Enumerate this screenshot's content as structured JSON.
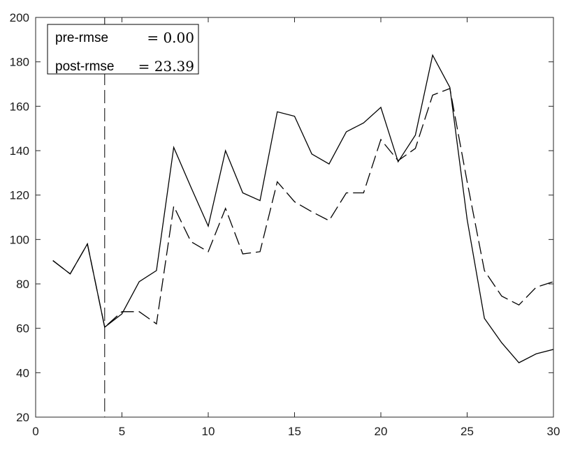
{
  "chart_data": {
    "type": "line",
    "title": "",
    "xlabel": "",
    "ylabel": "",
    "xlim": [
      0,
      30
    ],
    "ylim": [
      20,
      200
    ],
    "xticks": [
      0,
      5,
      10,
      15,
      20,
      25,
      30
    ],
    "yticks": [
      20,
      40,
      60,
      80,
      100,
      120,
      140,
      160,
      180,
      200
    ],
    "grid": false,
    "legend_position": "top-left",
    "x": [
      1,
      2,
      3,
      4,
      5,
      6,
      7,
      8,
      9,
      10,
      11,
      12,
      13,
      14,
      15,
      16,
      17,
      18,
      19,
      20,
      21,
      22,
      23,
      24,
      25,
      26,
      27,
      28,
      29,
      30
    ],
    "series": [
      {
        "style": "solid",
        "color": "#000000",
        "values": [
          90.5,
          84.5,
          98,
          60.5,
          66.5,
          81,
          86,
          141.5,
          123.5,
          106,
          140,
          121,
          117.5,
          157.5,
          155.5,
          138.5,
          134,
          148.5,
          152.5,
          159.5,
          135,
          147,
          183,
          168.5,
          109,
          64.5,
          53.5,
          44.5,
          48.5,
          50.5
        ]
      },
      {
        "style": "dashed",
        "color": "#000000",
        "values": [
          90.5,
          84.5,
          98,
          60.5,
          67.5,
          67.5,
          62,
          115,
          99,
          94.5,
          114,
          93.5,
          94.5,
          126,
          117,
          112.5,
          108.5,
          121,
          121,
          145,
          135.5,
          141,
          165,
          168,
          126,
          86,
          74.5,
          70.5,
          78.5,
          81
        ]
      }
    ],
    "vline": {
      "x": 4,
      "style": "dashed"
    },
    "legend": {
      "rows": [
        {
          "label": "pre-rmse",
          "value": "= 0.00"
        },
        {
          "label": "post-rmse",
          "value": "= 23.39"
        }
      ]
    }
  }
}
